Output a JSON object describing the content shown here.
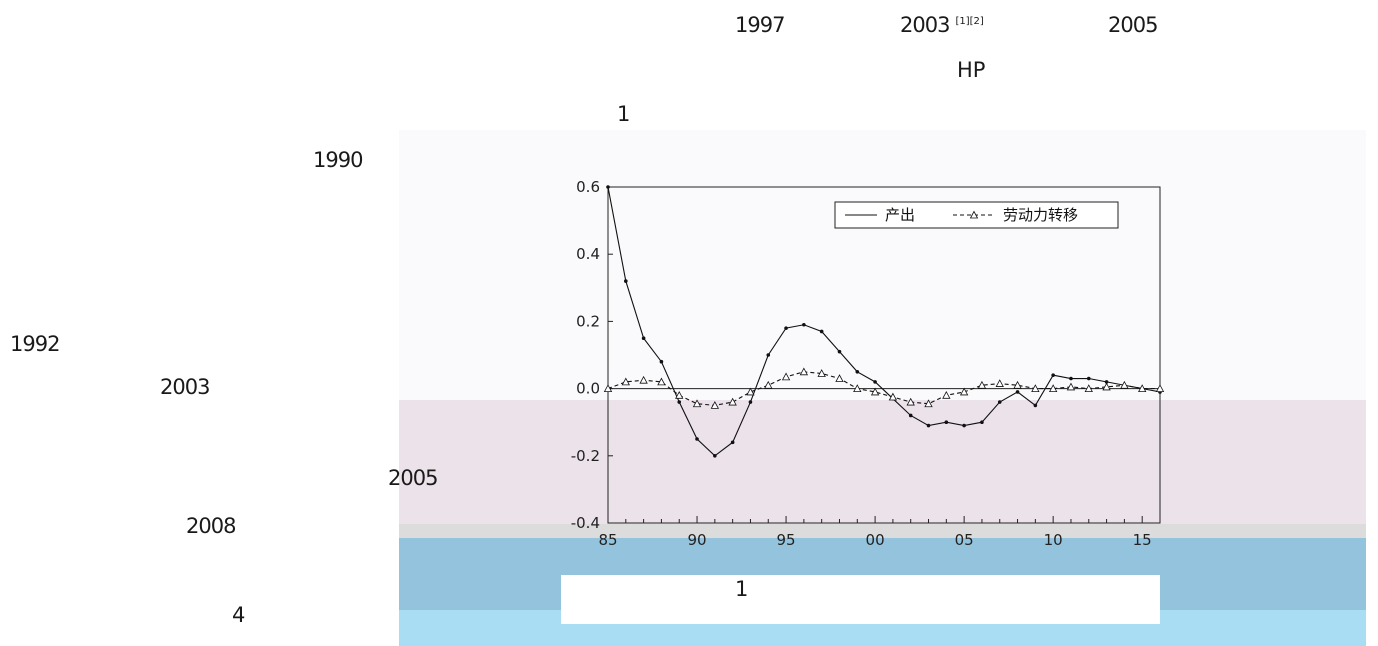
{
  "text": {
    "y1997": "1997",
    "y2003a": "2003",
    "refs": "[1][2]",
    "y2005a": "2005",
    "hp": "HP",
    "one_a": "1",
    "y1990": "1990",
    "y1992": "1992",
    "y2003b": "2003",
    "y2005b": "2005",
    "y2008": "2008",
    "four": "4",
    "one_b": "1"
  },
  "chart_data": {
    "type": "line",
    "legend": {
      "placement": "top-right"
    },
    "ylim": [
      -0.4,
      0.6
    ],
    "yticks": [
      "0.6",
      "0.4",
      "0.2",
      "0.0",
      "-0.2",
      "-0.4"
    ],
    "xlim": [
      1985,
      2016
    ],
    "xticks": [
      "85",
      "90",
      "95",
      "00",
      "05",
      "10",
      "15"
    ],
    "series": [
      {
        "name": "产出",
        "marker": "dot",
        "x": [
          1985,
          1986,
          1987,
          1988,
          1989,
          1990,
          1991,
          1992,
          1993,
          1994,
          1995,
          1996,
          1997,
          1998,
          1999,
          2000,
          2001,
          2002,
          2003,
          2004,
          2005,
          2006,
          2007,
          2008,
          2009,
          2010,
          2011,
          2012,
          2013,
          2014,
          2015,
          2016
        ],
        "values": [
          0.6,
          0.32,
          0.15,
          0.08,
          -0.04,
          -0.15,
          -0.2,
          -0.16,
          -0.04,
          0.1,
          0.18,
          0.19,
          0.17,
          0.11,
          0.05,
          0.02,
          -0.03,
          -0.08,
          -0.11,
          -0.1,
          -0.11,
          -0.1,
          -0.04,
          -0.01,
          -0.05,
          0.04,
          0.03,
          0.03,
          0.02,
          0.01,
          0.0,
          -0.01
        ]
      },
      {
        "name": "劳动力转移",
        "marker": "triangle",
        "x": [
          1985,
          1986,
          1987,
          1988,
          1989,
          1990,
          1991,
          1992,
          1993,
          1994,
          1995,
          1996,
          1997,
          1998,
          1999,
          2000,
          2001,
          2002,
          2003,
          2004,
          2005,
          2006,
          2007,
          2008,
          2009,
          2010,
          2011,
          2012,
          2013,
          2014,
          2015,
          2016
        ],
        "values": [
          0.0,
          0.02,
          0.025,
          0.02,
          -0.02,
          -0.045,
          -0.05,
          -0.04,
          -0.01,
          0.01,
          0.035,
          0.05,
          0.045,
          0.03,
          0.0,
          -0.01,
          -0.025,
          -0.04,
          -0.045,
          -0.02,
          -0.01,
          0.01,
          0.015,
          0.01,
          0.0,
          0.0,
          0.005,
          0.0,
          0.005,
          0.01,
          0.0,
          0.0
        ]
      }
    ]
  }
}
